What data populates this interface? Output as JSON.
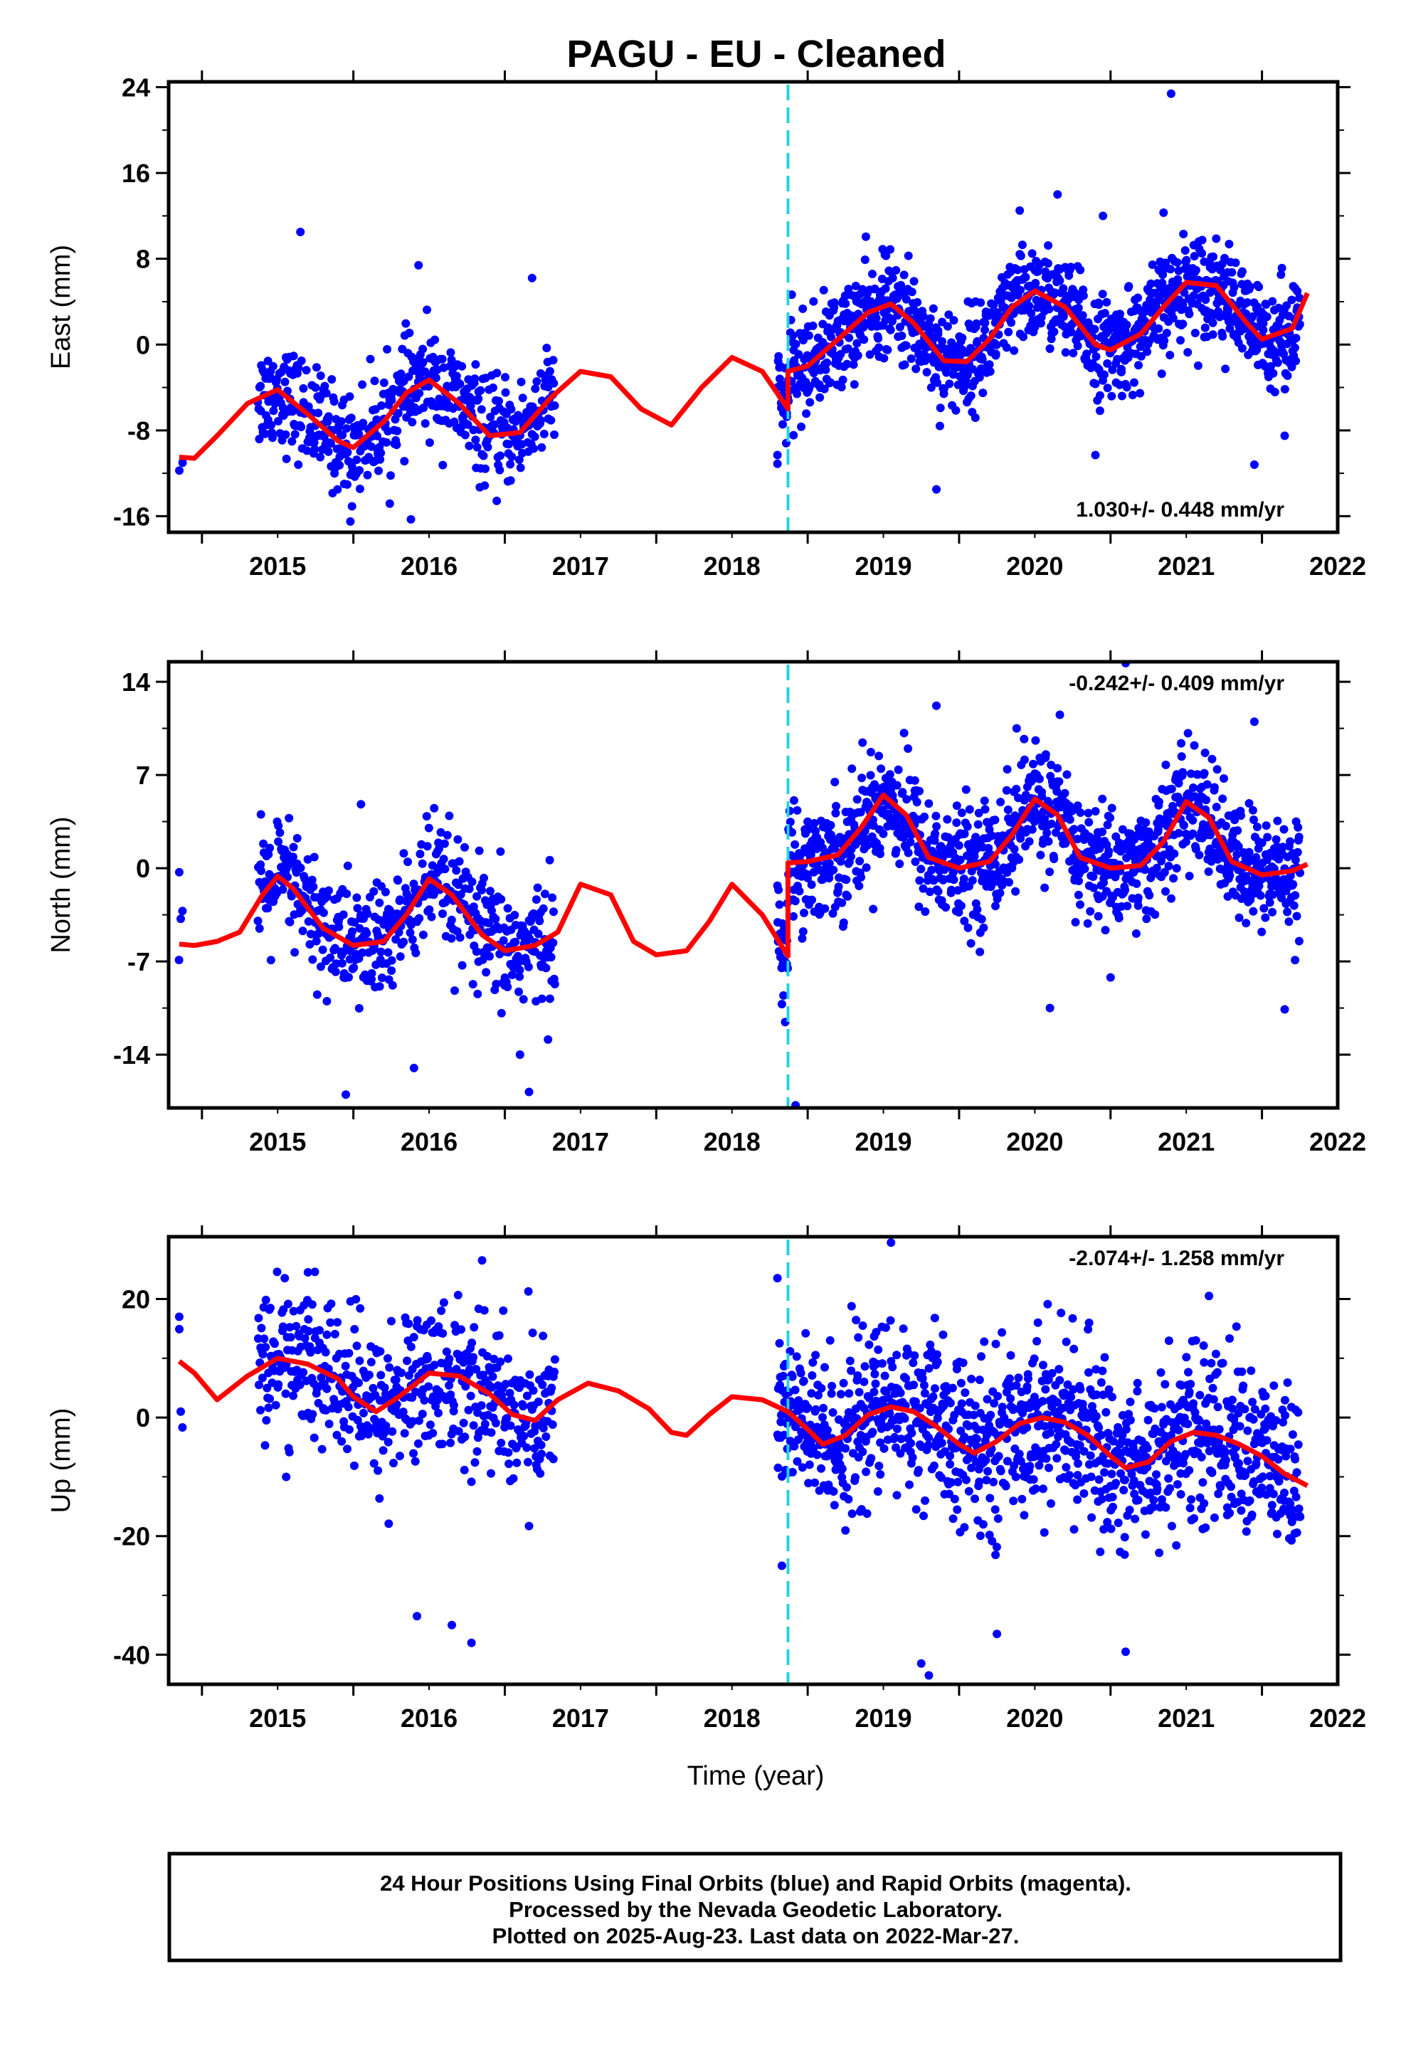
{
  "page": {
    "title": "PAGU  - EU - Cleaned",
    "xlabel": "Time (year)",
    "footer_lines": [
      "24 Hour Positions Using Final Orbits (blue) and Rapid Orbits (magenta).",
      "Processed by the Nevada Geodetic Laboratory.",
      "Plotted on 2025-Aug-23. Last data on 2022-Mar-27."
    ]
  },
  "colors": {
    "points": "#0000ff",
    "model": "#ff0000",
    "event_line": "#22d3e0"
  },
  "chart_data": [
    {
      "type": "scatter",
      "ylabel": "East (mm)",
      "xlim": [
        2014.78,
        2022.5
      ],
      "ylim": [
        -17.5,
        24.5
      ],
      "x_ticks": [
        2015,
        2016,
        2017,
        2018,
        2019,
        2020,
        2021,
        2022
      ],
      "y_ticks": [
        -16,
        -8,
        0,
        8,
        16,
        24
      ],
      "rate_label": "1.030+/- 0.448 mm/yr",
      "rate_position": "bottom-right",
      "event_line_x": 2018.87,
      "fit_curve": {
        "x": [
          2014.85,
          2014.95,
          2015.1,
          2015.3,
          2015.5,
          2015.7,
          2015.9,
          2016.0,
          2016.2,
          2016.35,
          2016.5,
          2016.7,
          2016.9,
          2017.1,
          2017.3,
          2017.5,
          2017.7,
          2017.9,
          2018.1,
          2018.3,
          2018.5,
          2018.7,
          2018.87,
          2018.87,
          2019.0,
          2019.2,
          2019.4,
          2019.55,
          2019.7,
          2019.9,
          2020.05,
          2020.2,
          2020.35,
          2020.5,
          2020.7,
          2020.9,
          2021.0,
          2021.2,
          2021.35,
          2021.5,
          2021.7,
          2021.9,
          2022.0,
          2022.2,
          2022.3
        ],
        "y": [
          -10.5,
          -10.6,
          -8.5,
          -5.5,
          -4.2,
          -6.5,
          -9.0,
          -9.6,
          -7.2,
          -4.5,
          -3.3,
          -5.5,
          -8.5,
          -8.2,
          -5.0,
          -2.5,
          -3.0,
          -6.0,
          -7.5,
          -4.0,
          -1.2,
          -2.5,
          -6.0,
          -2.5,
          -2.0,
          0.5,
          3.0,
          3.8,
          2.0,
          -1.5,
          -1.6,
          0.5,
          3.5,
          5.0,
          3.5,
          0.0,
          -0.5,
          1.0,
          3.5,
          5.8,
          5.5,
          2.0,
          0.5,
          1.5,
          4.8
        ]
      },
      "points_summary": {
        "segments": [
          {
            "from": 2014.85,
            "to": 2014.87,
            "noise": 1.2,
            "count": 2
          },
          {
            "from": 2015.37,
            "to": 2017.33,
            "noise": 2.4,
            "count": 520
          },
          {
            "from": 2018.8,
            "to": 2022.25,
            "noise": 2.3,
            "count": 1150
          }
        ],
        "outliers": [
          {
            "x": 2015.65,
            "y": 10.5
          },
          {
            "x": 2016.43,
            "y": 7.4
          },
          {
            "x": 2017.18,
            "y": 6.2
          },
          {
            "x": 2015.98,
            "y": -16.5
          },
          {
            "x": 2016.38,
            "y": -16.3
          },
          {
            "x": 2019.85,
            "y": -13.5
          },
          {
            "x": 2020.65,
            "y": 14.0
          },
          {
            "x": 2021.4,
            "y": 23.4
          },
          {
            "x": 2021.95,
            "y": -11.2
          },
          {
            "x": 2020.4,
            "y": 12.5
          },
          {
            "x": 2021.35,
            "y": 12.3
          },
          {
            "x": 2020.95,
            "y": 12.0
          },
          {
            "x": 2018.8,
            "y": -10.3
          },
          {
            "x": 2020.9,
            "y": -10.3
          },
          {
            "x": 2022.15,
            "y": -8.5
          }
        ]
      }
    },
    {
      "type": "scatter",
      "ylabel": "North (mm)",
      "xlim": [
        2014.78,
        2022.5
      ],
      "ylim": [
        -18,
        15.5
      ],
      "x_ticks": [
        2015,
        2016,
        2017,
        2018,
        2019,
        2020,
        2021,
        2022
      ],
      "y_ticks": [
        -14,
        -7,
        0,
        7,
        14
      ],
      "rate_label": "-0.242+/- 0.409 mm/yr",
      "rate_position": "top-right",
      "event_line_x": 2018.87,
      "fit_curve": {
        "x": [
          2014.85,
          2014.95,
          2015.1,
          2015.25,
          2015.4,
          2015.5,
          2015.6,
          2015.8,
          2016.0,
          2016.2,
          2016.35,
          2016.5,
          2016.65,
          2016.85,
          2017.0,
          2017.2,
          2017.35,
          2017.5,
          2017.7,
          2017.85,
          2018.0,
          2018.2,
          2018.35,
          2018.5,
          2018.7,
          2018.87,
          2018.87,
          2019.0,
          2019.2,
          2019.35,
          2019.5,
          2019.65,
          2019.8,
          2020.0,
          2020.2,
          2020.35,
          2020.5,
          2020.65,
          2020.8,
          2021.0,
          2021.2,
          2021.35,
          2021.5,
          2021.65,
          2021.8,
          2022.0,
          2022.2,
          2022.3
        ],
        "y": [
          -5.7,
          -5.8,
          -5.5,
          -4.8,
          -2.0,
          -0.6,
          -1.5,
          -4.5,
          -5.8,
          -5.5,
          -3.5,
          -0.8,
          -2.0,
          -5.0,
          -6.2,
          -5.8,
          -4.8,
          -1.2,
          -2.0,
          -5.5,
          -6.5,
          -6.2,
          -4.0,
          -1.2,
          -3.5,
          -6.6,
          0.4,
          0.5,
          1.0,
          3.0,
          5.5,
          4.0,
          0.8,
          0.0,
          0.5,
          2.5,
          5.2,
          4.0,
          0.8,
          0.0,
          0.2,
          2.0,
          5.0,
          3.8,
          0.5,
          -0.5,
          -0.2,
          0.3
        ]
      },
      "points_summary": {
        "segments": [
          {
            "from": 2014.85,
            "to": 2014.87,
            "noise": 1.5,
            "count": 2
          },
          {
            "from": 2015.37,
            "to": 2017.33,
            "noise": 2.3,
            "count": 520
          },
          {
            "from": 2018.8,
            "to": 2022.25,
            "noise": 2.2,
            "count": 1150
          }
        ],
        "outliers": [
          {
            "x": 2014.85,
            "y": -0.3
          },
          {
            "x": 2014.86,
            "y": -3.8
          },
          {
            "x": 2015.95,
            "y": -17.0
          },
          {
            "x": 2017.16,
            "y": -16.8
          },
          {
            "x": 2016.05,
            "y": 4.8
          },
          {
            "x": 2018.92,
            "y": -17.8
          },
          {
            "x": 2019.85,
            "y": 12.2
          },
          {
            "x": 2020.38,
            "y": 10.5
          },
          {
            "x": 2021.1,
            "y": 15.4
          },
          {
            "x": 2021.95,
            "y": 11.0
          },
          {
            "x": 2022.15,
            "y": -10.6
          },
          {
            "x": 2020.6,
            "y": -10.5
          },
          {
            "x": 2021.0,
            "y": -8.2
          },
          {
            "x": 2016.4,
            "y": -15.0
          },
          {
            "x": 2017.1,
            "y": -14.0
          }
        ]
      }
    },
    {
      "type": "scatter",
      "ylabel": "Up (mm)",
      "xlim": [
        2014.78,
        2022.5
      ],
      "ylim": [
        -45,
        30.5
      ],
      "x_ticks": [
        2015,
        2016,
        2017,
        2018,
        2019,
        2020,
        2021,
        2022
      ],
      "y_ticks": [
        -40,
        -20,
        0,
        20
      ],
      "rate_label": "-2.074+/- 1.258 mm/yr",
      "rate_position": "top-right",
      "event_line_x": 2018.87,
      "fit_curve": {
        "x": [
          2014.85,
          2014.95,
          2015.1,
          2015.3,
          2015.5,
          2015.7,
          2015.9,
          2016.0,
          2016.15,
          2016.3,
          2016.5,
          2016.7,
          2016.9,
          2017.05,
          2017.2,
          2017.35,
          2017.55,
          2017.75,
          2017.95,
          2018.1,
          2018.2,
          2018.35,
          2018.5,
          2018.7,
          2018.87,
          2019.0,
          2019.1,
          2019.25,
          2019.4,
          2019.55,
          2019.7,
          2019.85,
          2020.0,
          2020.1,
          2020.25,
          2020.4,
          2020.55,
          2020.7,
          2020.85,
          2021.0,
          2021.1,
          2021.25,
          2021.4,
          2021.55,
          2021.7,
          2021.85,
          2022.0,
          2022.15,
          2022.3
        ],
        "y": [
          9.5,
          7.5,
          3.0,
          7.0,
          10.0,
          9.0,
          6.5,
          3.5,
          1.0,
          3.5,
          7.5,
          7.0,
          4.0,
          0.5,
          -0.5,
          3.0,
          5.8,
          4.5,
          1.5,
          -2.5,
          -3.0,
          0.5,
          3.5,
          3.0,
          1.0,
          -2.0,
          -4.5,
          -3.0,
          0.5,
          1.8,
          1.0,
          -1.5,
          -4.5,
          -6.0,
          -4.0,
          -1.0,
          0.0,
          -0.8,
          -3.0,
          -6.5,
          -8.5,
          -7.5,
          -4.0,
          -2.5,
          -3.0,
          -4.5,
          -6.5,
          -9.5,
          -11.5
        ]
      },
      "points_summary": {
        "segments": [
          {
            "from": 2014.85,
            "to": 2014.87,
            "noise": 6.0,
            "count": 2
          },
          {
            "from": 2015.37,
            "to": 2017.33,
            "noise": 6.5,
            "count": 520
          },
          {
            "from": 2018.8,
            "to": 2022.25,
            "noise": 7.0,
            "count": 1150
          }
        ],
        "outliers": [
          {
            "x": 2014.85,
            "y": 17.0
          },
          {
            "x": 2014.86,
            "y": 1.0
          },
          {
            "x": 2016.42,
            "y": -33.5
          },
          {
            "x": 2016.65,
            "y": -35.0
          },
          {
            "x": 2016.78,
            "y": -38.0
          },
          {
            "x": 2019.55,
            "y": 29.5
          },
          {
            "x": 2019.75,
            "y": -41.5
          },
          {
            "x": 2019.8,
            "y": -43.5
          },
          {
            "x": 2021.1,
            "y": -39.5
          },
          {
            "x": 2018.8,
            "y": 23.5
          },
          {
            "x": 2015.7,
            "y": 24.5
          },
          {
            "x": 2016.85,
            "y": 26.5
          },
          {
            "x": 2021.65,
            "y": 20.5
          },
          {
            "x": 2020.25,
            "y": -36.5
          },
          {
            "x": 2018.83,
            "y": -25.0
          }
        ]
      }
    }
  ]
}
